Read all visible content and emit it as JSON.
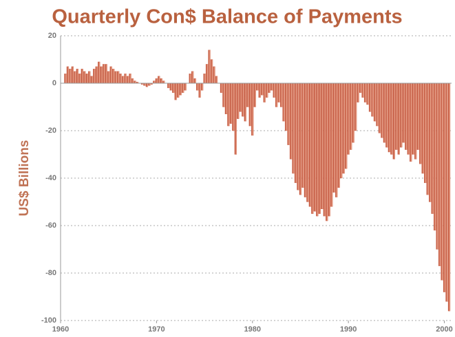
{
  "chart_data": {
    "type": "bar",
    "title": "Quarterly Con$ Balance of Payments",
    "y_label": "US$ Billions",
    "color": "#c9553a",
    "x": [
      1960.5,
      1960.75,
      1961,
      1961.25,
      1961.5,
      1961.75,
      1962,
      1962.25,
      1962.5,
      1962.75,
      1963,
      1963.25,
      1963.5,
      1963.75,
      1964,
      1964.25,
      1964.5,
      1964.75,
      1965,
      1965.25,
      1965.5,
      1965.75,
      1966,
      1966.25,
      1966.5,
      1966.75,
      1967,
      1967.25,
      1967.5,
      1967.75,
      1968,
      1968.25,
      1968.5,
      1968.75,
      1969,
      1969.25,
      1969.5,
      1969.75,
      1970,
      1970.25,
      1970.5,
      1970.75,
      1971,
      1971.25,
      1971.5,
      1971.75,
      1972,
      1972.25,
      1972.5,
      1972.75,
      1973,
      1973.25,
      1973.5,
      1973.75,
      1974,
      1974.25,
      1974.5,
      1974.75,
      1975,
      1975.25,
      1975.5,
      1975.75,
      1976,
      1976.25,
      1976.5,
      1976.75,
      1977,
      1977.25,
      1977.5,
      1977.75,
      1978,
      1978.25,
      1978.5,
      1978.75,
      1979,
      1979.25,
      1979.5,
      1979.75,
      1980,
      1980.25,
      1980.5,
      1980.75,
      1981,
      1981.25,
      1981.5,
      1981.75,
      1982,
      1982.25,
      1982.5,
      1982.75,
      1983,
      1983.25,
      1983.5,
      1983.75,
      1984,
      1984.25,
      1984.5,
      1984.75,
      1985,
      1985.25,
      1985.5,
      1985.75,
      1986,
      1986.25,
      1986.5,
      1986.75,
      1987,
      1987.25,
      1987.5,
      1987.75,
      1988,
      1988.25,
      1988.5,
      1988.75,
      1989,
      1989.25,
      1989.5,
      1989.75,
      1990,
      1990.25,
      1990.5,
      1990.75,
      1991,
      1991.25,
      1991.5,
      1991.75,
      1992,
      1992.25,
      1992.5,
      1992.75,
      1993,
      1993.25,
      1993.5,
      1993.75,
      1994,
      1994.25,
      1994.5,
      1994.75,
      1995,
      1995.25,
      1995.5,
      1995.75,
      1996,
      1996.25,
      1996.5,
      1996.75,
      1997,
      1997.25,
      1997.5,
      1997.75,
      1998,
      1998.25,
      1998.5,
      1998.75,
      1999,
      1999.25,
      1999.5,
      1999.75,
      2000,
      2000.25,
      2000.5
    ],
    "values": [
      4,
      7,
      6,
      7,
      5,
      6,
      4,
      6,
      5,
      4,
      5,
      3,
      6,
      7,
      9,
      7,
      8,
      8,
      5,
      7,
      6,
      5,
      5,
      4,
      3,
      4,
      3,
      4,
      2,
      1,
      0.5,
      0,
      -0.5,
      -1,
      -1.5,
      -1,
      -0.5,
      1,
      2,
      3,
      2,
      1,
      0,
      -2,
      -3,
      -4,
      -7,
      -6,
      -5,
      -4,
      -3,
      0,
      4,
      5,
      2,
      -3,
      -6,
      -3,
      4,
      8,
      14,
      10,
      7,
      3,
      0,
      -4,
      -10,
      -13,
      -18,
      -17,
      -20,
      -30,
      -15,
      -12,
      -14,
      -16,
      -10,
      -18,
      -22,
      -10,
      -3,
      -6,
      -5,
      -8,
      -6,
      -4,
      -3,
      -6,
      -10,
      -8,
      -10,
      -16,
      -20,
      -26,
      -32,
      -38,
      -42,
      -45,
      -47,
      -44,
      -48,
      -50,
      -52,
      -55,
      -54,
      -56,
      -55,
      -53,
      -56,
      -58,
      -56,
      -52,
      -46,
      -48,
      -44,
      -40,
      -38,
      -36,
      -30,
      -28,
      -25,
      -20,
      -8,
      -4,
      -6,
      -8,
      -9,
      -12,
      -14,
      -16,
      -18,
      -21,
      -23,
      -25,
      -27,
      -29,
      -30,
      -32,
      -28,
      -30,
      -27,
      -25,
      -28,
      -30,
      -33,
      -30,
      -32,
      -28,
      -34,
      -38,
      -42,
      -47,
      -50,
      -55,
      -62,
      -70,
      -77,
      -83,
      -88,
      -92,
      -96
    ],
    "xlim": [
      1960,
      2000.75
    ],
    "xticks": [
      1960,
      1970,
      1980,
      1990,
      2000
    ],
    "ylim": [
      -100,
      20
    ],
    "yticks": [
      20,
      0,
      -20,
      -40,
      -60,
      -80,
      -100
    ],
    "grid": true
  }
}
